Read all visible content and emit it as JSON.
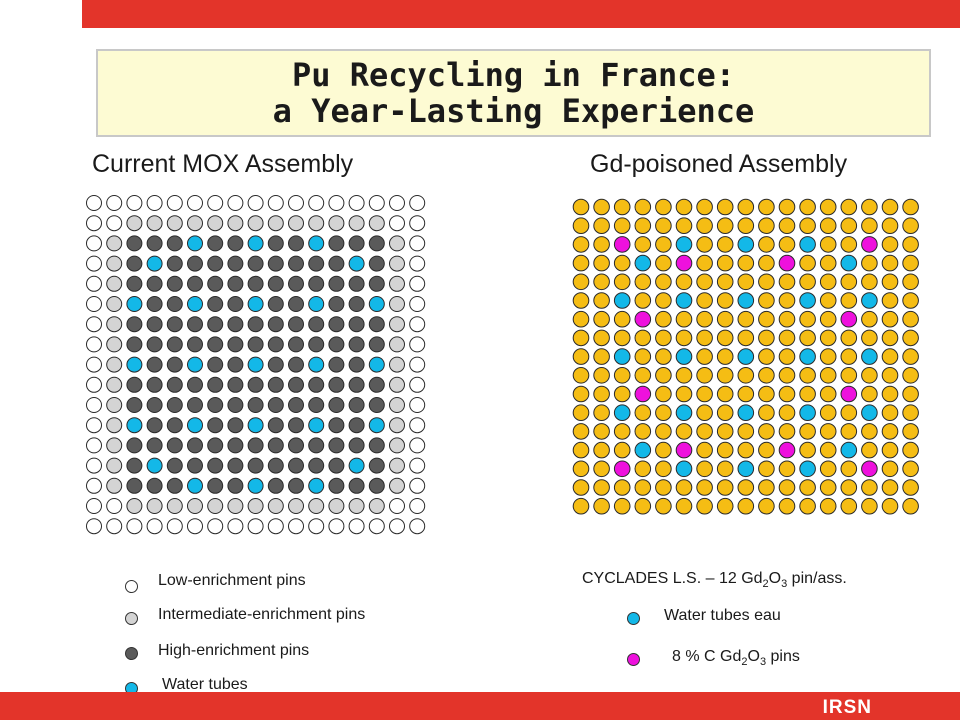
{
  "title_line1": "Pu Recycling in France:",
  "title_line2": "a Year-Lasting Experience",
  "left_heading": "Current MOX Assembly",
  "right_heading": "Gd-poisoned Assembly",
  "logo_text": "IRSN",
  "colors": {
    "red_bar": "#e3342a",
    "low": "#ffffff",
    "intermediate": "#d4d4d4",
    "high": "#5a5a5a",
    "water": "#13b8e8",
    "uo2_gold": "#f5bd14",
    "gd_magenta": "#ee11dd"
  },
  "left_legend": [
    {
      "label": "Low-enrichment pins",
      "kind": "low"
    },
    {
      "label": "Intermediate-enrichment pins",
      "kind": "intermediate"
    },
    {
      "label": "High-enrichment pins",
      "kind": "high"
    },
    {
      "label": "Water tubes",
      "kind": "water"
    }
  ],
  "right_legend": {
    "header_prefix": "CYCLADES L.S. – 12 Gd",
    "header_sub1": "2",
    "header_mid": "O",
    "header_sub2": "3",
    "header_suffix": " pin/ass.",
    "water_label": "Water tubes eau",
    "gd_prefix": "8 % C Gd",
    "gd_sub1": "2",
    "gd_mid": "O",
    "gd_sub2": "3",
    "gd_suffix": "  pins"
  },
  "mox_map": [
    "LLLLLLLLLLLLLLLLL",
    "LLIIIIIIIIIIIIILL",
    "LIHHHWHHWHHWHHHIL",
    "LIHWHHHHHHHHHWHIL",
    "LIHHHHHHHHHHHHHIL",
    "LIWHHWHHWHHWHHWIL",
    "LIHHHHHHHHHHHHHIL",
    "LIHHHHHHHHHHHHHIL",
    "LIWHHWHHWHHWHHWIL",
    "LIHHHHHHHHHHHHHIL",
    "LIHHHHHHHHHHHHHIL",
    "LIWHHWHHWHHWHHWIL",
    "LIHHHHHHHHHHHHHIL",
    "LIHWHHHHHHHHHWHIL",
    "LIHHHWHHWHHWHHHIL",
    "LLIIIIIIIIIIIIILL",
    "LLLLLLLLLLLLLLLLL"
  ],
  "gd_map": [
    "UUUUUUUUUUUUUUUUU",
    "UUUUUUUUUUUUUUUUU",
    "UUGUUWUUWUUWUUGUU",
    "UUUWUGUUUUGUUWUUU",
    "UUUUUUUUUUUUUUUUU",
    "UUWUUWUUWUUWUUWUU",
    "UUUGUUUUUUUUUGUUU",
    "UUUUUUUUUUUUUUUUU",
    "UUWUUWUUWUUWUUWUU",
    "UUUUUUUUUUUUUUUUU",
    "UUUGUUUUUUUUUGUUU",
    "UUWUUWUUWUUWUUWUU",
    "UUUUUUUUUUUUUUUUU",
    "UUUWUGUUUUGUUWUUU",
    "UUGUUWUUWUUWUUGUU",
    "UUUUUUUUUUUUUUUUU",
    "UUUUUUUUUUUUUUUUU"
  ]
}
